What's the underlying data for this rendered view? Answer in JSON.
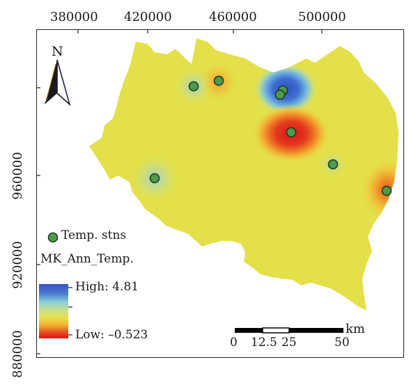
{
  "map": {
    "x_ticks": [
      "380000",
      "420000",
      "460000",
      "500000"
    ],
    "y_ticks": [
      "960000",
      "920000",
      "880000"
    ],
    "north_label": "N",
    "colors": {
      "base": "#e3e04a",
      "high": "#3a5fc8",
      "low": "#e02a20",
      "station_fill": "#4e9a4e",
      "station_stroke": "#1f3b1f"
    }
  },
  "legend": {
    "stations_label": "Temp. stns",
    "layer_title": "MK_Ann_Temp.",
    "high_label": "High: 4.81",
    "low_label": "Low: –0.523"
  },
  "scale_bar": {
    "unit": "km",
    "labels": [
      "0",
      "12.5",
      "25",
      "50"
    ]
  }
}
